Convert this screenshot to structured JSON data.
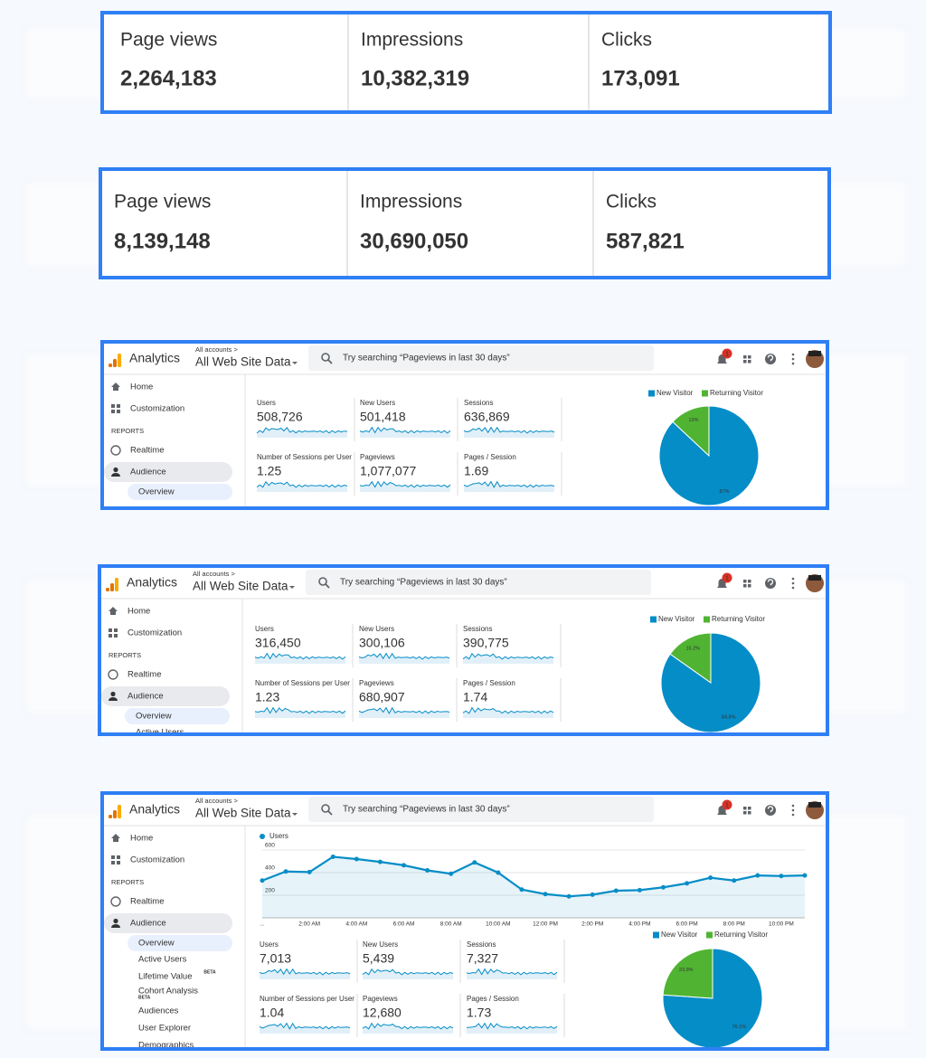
{
  "metric_panels": [
    {
      "metrics": [
        {
          "label": "Page views",
          "value": "2,264,183"
        },
        {
          "label": "Impressions",
          "value": "10,382,319"
        },
        {
          "label": "Clicks",
          "value": "173,091"
        }
      ]
    },
    {
      "metrics": [
        {
          "label": "Page views",
          "value": "8,139,148"
        },
        {
          "label": "Impressions",
          "value": "30,690,050"
        },
        {
          "label": "Clicks",
          "value": "587,821"
        }
      ]
    }
  ],
  "ga_panels": [
    {
      "header": {
        "app": "Analytics",
        "breadcrumb": "All accounts >",
        "property": "All Web Site Data",
        "search": "Try searching “Pageviews in last 30 days”",
        "notifications": "1"
      },
      "nav": [
        {
          "label": "Home"
        },
        {
          "label": "Customization"
        },
        {
          "label": "REPORTS"
        },
        {
          "label": "Realtime"
        },
        {
          "label": "Audience"
        },
        {
          "label": "Overview"
        }
      ],
      "metrics": [
        {
          "label": "Users",
          "value": "508,726"
        },
        {
          "label": "New Users",
          "value": "501,418"
        },
        {
          "label": "Sessions",
          "value": "636,869"
        },
        {
          "label": "Number of Sessions per User",
          "value": "1.25"
        },
        {
          "label": "Pageviews",
          "value": "1,077,077"
        },
        {
          "label": "Pages / Session",
          "value": "1.69"
        }
      ],
      "chart_data": [
        {
          "type": "pie",
          "categories": [
            "New Visitor",
            "Returning Visitor"
          ],
          "values": [
            87,
            13
          ],
          "value_labels": [
            "87%",
            "13%"
          ],
          "colors": [
            "#058dc7",
            "#50b432"
          ]
        }
      ]
    },
    {
      "header": {
        "app": "Analytics",
        "breadcrumb": "All accounts >",
        "property": "All Web Site Data",
        "search": "Try searching “Pageviews in last 30 days”",
        "notifications": "1"
      },
      "nav": [
        {
          "label": "Home"
        },
        {
          "label": "Customization"
        },
        {
          "label": "REPORTS"
        },
        {
          "label": "Realtime"
        },
        {
          "label": "Audience"
        },
        {
          "label": "Overview"
        },
        {
          "label": "Active Users"
        }
      ],
      "metrics": [
        {
          "label": "Users",
          "value": "316,450"
        },
        {
          "label": "New Users",
          "value": "300,106"
        },
        {
          "label": "Sessions",
          "value": "390,775"
        },
        {
          "label": "Number of Sessions per User",
          "value": "1.23"
        },
        {
          "label": "Pageviews",
          "value": "680,907"
        },
        {
          "label": "Pages / Session",
          "value": "1.74"
        }
      ],
      "chart_data": [
        {
          "type": "pie",
          "categories": [
            "New Visitor",
            "Returning Visitor"
          ],
          "values": [
            84.8,
            15.2
          ],
          "value_labels": [
            "84.8%",
            "15.2%"
          ],
          "colors": [
            "#058dc7",
            "#50b432"
          ]
        }
      ]
    },
    {
      "header": {
        "app": "Analytics",
        "breadcrumb": "All accounts >",
        "property": "All Web Site Data",
        "search": "Try searching “Pageviews in last 30 days”",
        "notifications": "1"
      },
      "nav": [
        {
          "label": "Home"
        },
        {
          "label": "Customization"
        },
        {
          "label": "REPORTS"
        },
        {
          "label": "Realtime"
        },
        {
          "label": "Audience"
        },
        {
          "label": "Overview"
        },
        {
          "label": "Active Users"
        },
        {
          "label": "Lifetime Value",
          "badge": "BETA"
        },
        {
          "label": "Cohort Analysis",
          "badge": "BETA"
        },
        {
          "label": "Audiences"
        },
        {
          "label": "User Explorer"
        },
        {
          "label": "Demographics"
        }
      ],
      "metrics": [
        {
          "label": "Users",
          "value": "7,013"
        },
        {
          "label": "New Users",
          "value": "5,439"
        },
        {
          "label": "Sessions",
          "value": "7,327"
        },
        {
          "label": "Number of Sessions per User",
          "value": "1.04"
        },
        {
          "label": "Pageviews",
          "value": "12,680"
        },
        {
          "label": "Pages / Session",
          "value": "1.73"
        }
      ],
      "chart_data": [
        {
          "type": "line",
          "categories": [
            "...",
            null,
            "2:00 AM",
            null,
            "4:00 AM",
            null,
            "6:00 AM",
            null,
            "8:00 AM",
            null,
            "10:00 AM",
            null,
            "12:00 PM",
            null,
            "2:00 PM",
            null,
            "4:00 PM",
            null,
            "6:00 PM",
            null,
            "8:00 PM",
            null,
            "10:00 PM",
            null
          ],
          "series": [
            {
              "name": "Users",
              "color": "#058dc7",
              "values": [
                330,
                410,
                405,
                540,
                520,
                495,
                465,
                420,
                390,
                490,
                400,
                250,
                210,
                190,
                205,
                240,
                245,
                270,
                305,
                355,
                330,
                375,
                370,
                375
              ]
            }
          ],
          "ylim": [
            0,
            640
          ],
          "yticks": [
            200,
            400,
            600
          ],
          "grid": true
        },
        {
          "type": "pie",
          "categories": [
            "New Visitor",
            "Returning Visitor"
          ],
          "values": [
            76.1,
            23.9
          ],
          "value_labels": [
            "76.1%",
            "23.9%"
          ],
          "colors": [
            "#058dc7",
            "#50b432"
          ]
        }
      ]
    }
  ]
}
